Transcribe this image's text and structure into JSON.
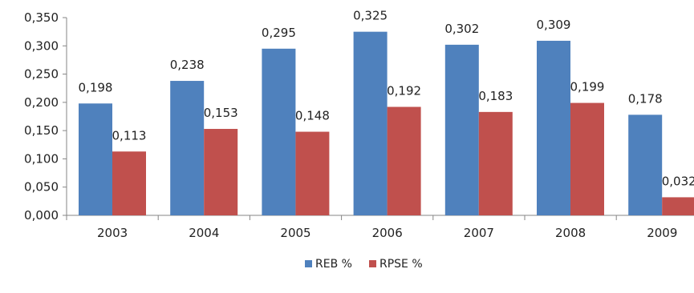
{
  "chart_data": {
    "type": "bar",
    "categories": [
      "2003",
      "2004",
      "2005",
      "2006",
      "2007",
      "2008",
      "2009"
    ],
    "series": [
      {
        "name": "REB %",
        "color": "#4f81bd",
        "values": [
          0.198,
          0.238,
          0.295,
          0.325,
          0.302,
          0.309,
          0.178
        ],
        "labels": [
          "0,198",
          "0,238",
          "0,295",
          "0,325",
          "0,302",
          "0,309",
          "0,178"
        ]
      },
      {
        "name": "RPSE %",
        "color": "#c0504d",
        "values": [
          0.113,
          0.153,
          0.148,
          0.192,
          0.183,
          0.199,
          0.032
        ],
        "labels": [
          "0,113",
          "0,153",
          "0,148",
          "0,192",
          "0,183",
          "0,199",
          "0,032"
        ]
      }
    ],
    "title": "",
    "xlabel": "",
    "ylabel": "",
    "ylim": [
      0,
      0.35
    ],
    "y_ticks": [
      {
        "value": 0.0,
        "label": "0,000"
      },
      {
        "value": 0.05,
        "label": "0,050"
      },
      {
        "value": 0.1,
        "label": "0,100"
      },
      {
        "value": 0.15,
        "label": "0,150"
      },
      {
        "value": 0.2,
        "label": "0,200"
      },
      {
        "value": 0.25,
        "label": "0,250"
      },
      {
        "value": 0.3,
        "label": "0,300"
      },
      {
        "value": 0.35,
        "label": "0,350"
      }
    ],
    "grid": false,
    "legend_position": "bottom-center",
    "axis_color": "#868686"
  }
}
